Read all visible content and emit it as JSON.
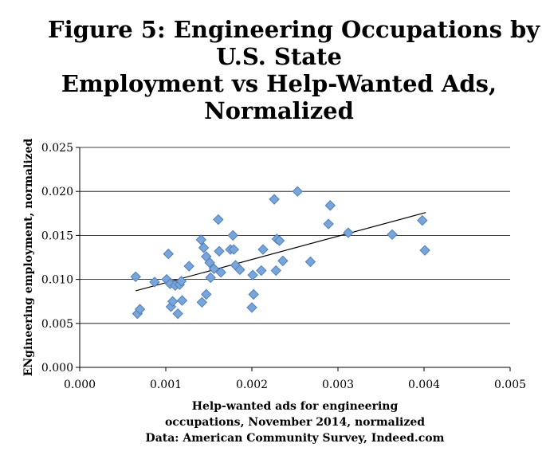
{
  "chart_data": {
    "type": "scatter",
    "title_lines": [
      "Figure 5: Engineering Occupations by",
      "U.S. State",
      "Employment vs Help-Wanted Ads,",
      "Normalized"
    ],
    "xlabel_lines": [
      "Help-wanted ads for engineering",
      "occupations, November 2014, normalized",
      "Data: American Community Survey, Indeed.com"
    ],
    "ylabel": "ENgineering employment, normalized",
    "xlim": [
      0,
      0.005
    ],
    "ylim": [
      0,
      0.025
    ],
    "x_ticks": [
      "0.000",
      "0.001",
      "0.002",
      "0.003",
      "0.004",
      "0.005"
    ],
    "y_ticks": [
      "0.000",
      "0.005",
      "0.010",
      "0.015",
      "0.020",
      "0.025"
    ],
    "grid": "horizontal",
    "marker_color": "#7aa5d8",
    "marker_edge": "#4f7fbd",
    "trendline": {
      "x": [
        0.00065,
        0.00402
      ],
      "y": [
        0.0087,
        0.0176
      ]
    },
    "points": [
      {
        "x": 0.00065,
        "y": 0.0103
      },
      {
        "x": 0.00067,
        "y": 0.0061
      },
      {
        "x": 0.0007,
        "y": 0.0066
      },
      {
        "x": 0.00087,
        "y": 0.0097
      },
      {
        "x": 0.00101,
        "y": 0.01
      },
      {
        "x": 0.00103,
        "y": 0.0129
      },
      {
        "x": 0.00105,
        "y": 0.0095
      },
      {
        "x": 0.00106,
        "y": 0.0069
      },
      {
        "x": 0.00108,
        "y": 0.0075
      },
      {
        "x": 0.00111,
        "y": 0.0093
      },
      {
        "x": 0.00114,
        "y": 0.0061
      },
      {
        "x": 0.00116,
        "y": 0.0094
      },
      {
        "x": 0.00118,
        "y": 0.0098
      },
      {
        "x": 0.00119,
        "y": 0.0076
      },
      {
        "x": 0.00127,
        "y": 0.0115
      },
      {
        "x": 0.00141,
        "y": 0.0145
      },
      {
        "x": 0.00142,
        "y": 0.0074
      },
      {
        "x": 0.00144,
        "y": 0.0136
      },
      {
        "x": 0.00147,
        "y": 0.0126
      },
      {
        "x": 0.00147,
        "y": 0.0083
      },
      {
        "x": 0.00151,
        "y": 0.0119
      },
      {
        "x": 0.00152,
        "y": 0.0102
      },
      {
        "x": 0.00156,
        "y": 0.0112
      },
      {
        "x": 0.00161,
        "y": 0.0168
      },
      {
        "x": 0.00162,
        "y": 0.0132
      },
      {
        "x": 0.00164,
        "y": 0.0108
      },
      {
        "x": 0.00175,
        "y": 0.0134
      },
      {
        "x": 0.00178,
        "y": 0.015
      },
      {
        "x": 0.00179,
        "y": 0.0134
      },
      {
        "x": 0.00181,
        "y": 0.0116
      },
      {
        "x": 0.00186,
        "y": 0.0111
      },
      {
        "x": 0.002,
        "y": 0.0068
      },
      {
        "x": 0.00201,
        "y": 0.0105
      },
      {
        "x": 0.00202,
        "y": 0.0083
      },
      {
        "x": 0.00211,
        "y": 0.011
      },
      {
        "x": 0.00213,
        "y": 0.0134
      },
      {
        "x": 0.00226,
        "y": 0.0191
      },
      {
        "x": 0.00228,
        "y": 0.011
      },
      {
        "x": 0.00229,
        "y": 0.0146
      },
      {
        "x": 0.00232,
        "y": 0.0144
      },
      {
        "x": 0.00236,
        "y": 0.0121
      },
      {
        "x": 0.00253,
        "y": 0.02
      },
      {
        "x": 0.00268,
        "y": 0.012
      },
      {
        "x": 0.00289,
        "y": 0.0163
      },
      {
        "x": 0.00291,
        "y": 0.0184
      },
      {
        "x": 0.00312,
        "y": 0.0153
      },
      {
        "x": 0.00363,
        "y": 0.0151
      },
      {
        "x": 0.00398,
        "y": 0.0167
      },
      {
        "x": 0.00401,
        "y": 0.0133
      }
    ]
  }
}
